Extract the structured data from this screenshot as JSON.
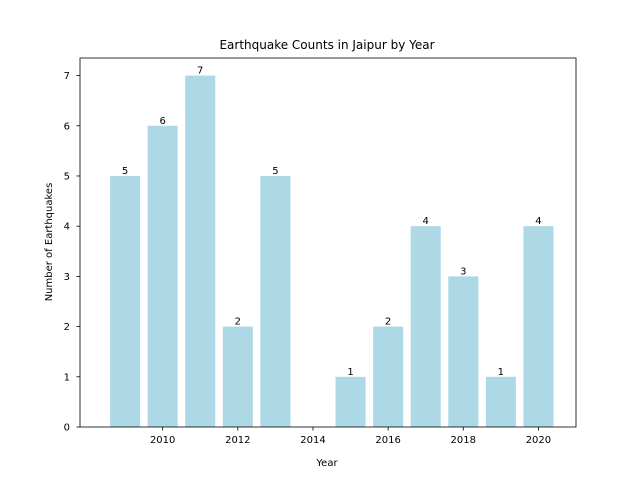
{
  "chart_data": {
    "type": "bar",
    "title": "Earthquake Counts in Jaipur by Year",
    "xlabel": "Year",
    "ylabel": "Number of Earthquakes",
    "x": [
      2009,
      2010,
      2011,
      2012,
      2013,
      2015,
      2016,
      2017,
      2018,
      2019,
      2020
    ],
    "values": [
      5,
      6,
      7,
      2,
      5,
      1,
      2,
      4,
      3,
      1,
      4
    ],
    "xlim": [
      2007.8,
      2021.0
    ],
    "ylim": [
      0,
      7.35
    ],
    "xticks": [
      2010,
      2012,
      2014,
      2016,
      2018,
      2020
    ],
    "yticks": [
      0,
      1,
      2,
      3,
      4,
      5,
      6,
      7
    ],
    "bar_color": "#add8e6",
    "grid": false,
    "legend": false
  }
}
